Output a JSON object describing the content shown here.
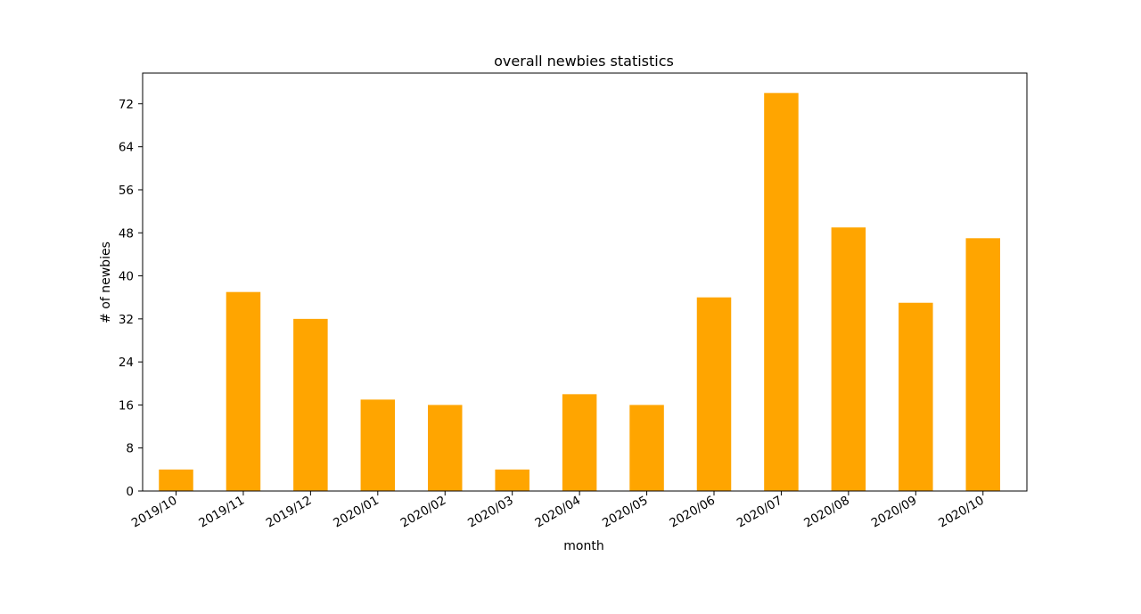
{
  "chart_data": {
    "type": "bar",
    "title": "overall newbies statistics",
    "xlabel": "month",
    "ylabel": "# of newbies",
    "categories": [
      "2019/10",
      "2019/11",
      "2019/12",
      "2020/01",
      "2020/02",
      "2020/03",
      "2020/04",
      "2020/05",
      "2020/06",
      "2020/07",
      "2020/08",
      "2020/09",
      "2020/10"
    ],
    "values": [
      4,
      37,
      32,
      17,
      16,
      4,
      18,
      16,
      36,
      74,
      49,
      35,
      47
    ],
    "yticks": [
      0,
      8,
      16,
      24,
      32,
      40,
      48,
      56,
      64,
      72
    ],
    "ylim": [
      0,
      77.7
    ],
    "grid": false,
    "legend": "none",
    "bar_color": "#ffa500",
    "axis_color": "#000000"
  }
}
